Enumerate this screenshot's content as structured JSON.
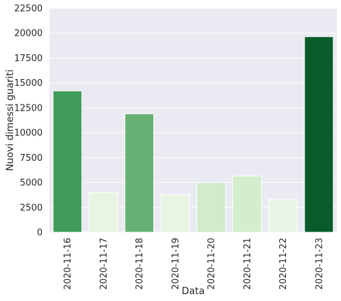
{
  "chart_data": {
    "type": "bar",
    "title": "",
    "xlabel": "Data",
    "ylabel": "Nuovi dimessi guariti",
    "categories": [
      "2020-11-16",
      "2020-11-17",
      "2020-11-18",
      "2020-11-19",
      "2020-11-20",
      "2020-11-21",
      "2020-11-22",
      "2020-11-23"
    ],
    "values": [
      14200,
      4000,
      11900,
      3800,
      5000,
      5650,
      3300,
      19650
    ],
    "bar_colors": [
      "#3f9c5a",
      "#e7f5e2",
      "#68b174",
      "#e8f5e3",
      "#d1ebcb",
      "#d3edcd",
      "#e9f6e5",
      "#0a5b2c"
    ],
    "yticks": [
      0,
      2500,
      5000,
      7500,
      10000,
      12500,
      15000,
      17500,
      20000,
      22500
    ],
    "ylim": [
      0,
      22500
    ],
    "grid": true,
    "background_color": "#eaeaf2",
    "grid_color": "#ffffff"
  }
}
